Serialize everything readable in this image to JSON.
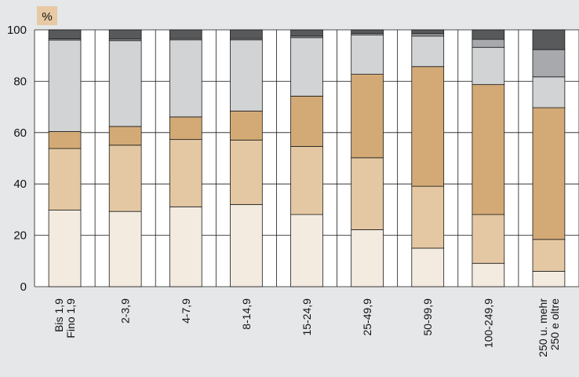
{
  "chart_data": {
    "type": "bar",
    "stacked": true,
    "unit": "%",
    "ylim": [
      0,
      100
    ],
    "yticks": [
      0,
      20,
      40,
      60,
      80,
      100
    ],
    "categories": [
      [
        "Bis 1,9",
        "Fino 1,9"
      ],
      [
        "2-3,9"
      ],
      [
        "4-7,9"
      ],
      [
        "8-14,9"
      ],
      [
        "15-24,9"
      ],
      [
        "25-49,9"
      ],
      [
        "50-99,9"
      ],
      [
        "100-249,9"
      ],
      [
        "250 u. mehr",
        "250 e oltre"
      ]
    ],
    "series": [
      {
        "color": "#f3ebe0",
        "values": [
          29.8,
          29.3,
          31.1,
          32.0,
          28.1,
          22.2,
          15.0,
          9.1,
          6.0
        ]
      },
      {
        "color": "#e4c8a3",
        "values": [
          24.0,
          25.8,
          26.2,
          25.1,
          26.5,
          28.0,
          24.1,
          19.0,
          12.4
        ]
      },
      {
        "color": "#d3aa76",
        "values": [
          6.6,
          7.3,
          8.8,
          11.3,
          19.6,
          32.5,
          46.6,
          50.6,
          51.3
        ]
      },
      {
        "color": "#d1d3d4",
        "values": [
          35.6,
          33.4,
          30.0,
          27.7,
          22.8,
          15.3,
          11.9,
          14.5,
          12.0
        ]
      },
      {
        "color": "#a7a9ac",
        "values": [
          0.5,
          0.6,
          0.5,
          0.5,
          0.6,
          0.6,
          0.9,
          3.1,
          10.6
        ]
      },
      {
        "color": "#58595b",
        "values": [
          3.5,
          3.6,
          3.4,
          3.4,
          2.4,
          1.4,
          1.5,
          3.7,
          7.7
        ]
      }
    ]
  }
}
